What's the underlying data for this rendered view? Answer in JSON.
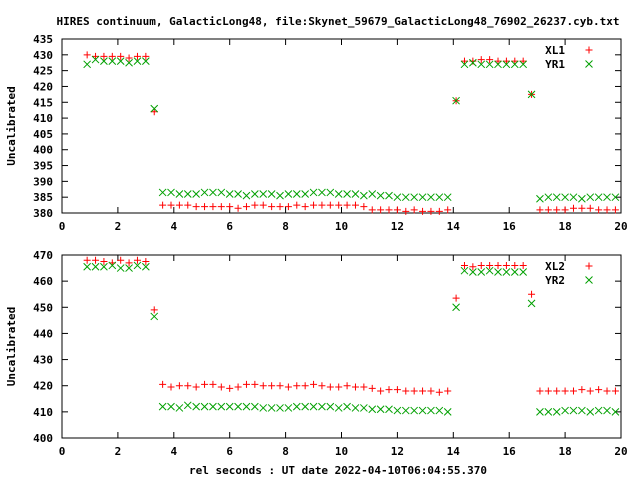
{
  "header": {
    "title": "HIRES continuum, GalacticLong48, file:Skynet_59679_GalacticLong48_76902_26237.cyb.txt"
  },
  "footer": {
    "xlabel": "rel seconds : UT date 2022-04-10T06:04:55.370"
  },
  "colors": {
    "red_series": "#ff0000",
    "green_series": "#00a000"
  },
  "chart_data": [
    {
      "type": "scatter",
      "ylabel": "Uncalibrated",
      "xlim": [
        0,
        20
      ],
      "ylim": [
        380,
        435
      ],
      "xticks": [
        0,
        2,
        4,
        6,
        8,
        10,
        12,
        14,
        16,
        18,
        20
      ],
      "yticks": [
        380,
        385,
        390,
        395,
        400,
        405,
        410,
        415,
        420,
        425,
        430,
        435
      ],
      "legend_position": "top-right",
      "series": [
        {
          "name": "XL1",
          "marker": "plus",
          "color": "#ff0000",
          "points": [
            [
              0.9,
              430
            ],
            [
              1.2,
              429.5
            ],
            [
              1.5,
              429.5
            ],
            [
              1.8,
              429.5
            ],
            [
              2.1,
              429.5
            ],
            [
              2.4,
              429
            ],
            [
              2.7,
              429.5
            ],
            [
              3.0,
              429.5
            ],
            [
              3.3,
              412
            ],
            [
              3.6,
              382.5
            ],
            [
              3.9,
              382.5
            ],
            [
              4.2,
              382.5
            ],
            [
              4.5,
              382.5
            ],
            [
              4.8,
              382
            ],
            [
              5.1,
              382
            ],
            [
              5.4,
              382
            ],
            [
              5.7,
              382
            ],
            [
              6.0,
              382
            ],
            [
              6.3,
              381.5
            ],
            [
              6.6,
              382
            ],
            [
              6.9,
              382.5
            ],
            [
              7.2,
              382.5
            ],
            [
              7.5,
              382
            ],
            [
              7.8,
              382
            ],
            [
              8.1,
              382
            ],
            [
              8.4,
              382.5
            ],
            [
              8.7,
              382
            ],
            [
              9.0,
              382.5
            ],
            [
              9.3,
              382.5
            ],
            [
              9.6,
              382.5
            ],
            [
              9.9,
              382.5
            ],
            [
              10.2,
              382.5
            ],
            [
              10.5,
              382.5
            ],
            [
              10.8,
              382
            ],
            [
              11.1,
              381
            ],
            [
              11.4,
              381
            ],
            [
              11.7,
              381
            ],
            [
              12.0,
              381
            ],
            [
              12.3,
              380.5
            ],
            [
              12.6,
              381
            ],
            [
              12.9,
              380.5
            ],
            [
              13.2,
              380.5
            ],
            [
              13.5,
              380.5
            ],
            [
              13.8,
              381
            ],
            [
              14.1,
              415.5
            ],
            [
              14.4,
              428
            ],
            [
              14.7,
              428
            ],
            [
              15.0,
              428.5
            ],
            [
              15.3,
              428.5
            ],
            [
              15.6,
              428
            ],
            [
              15.9,
              428
            ],
            [
              16.2,
              428
            ],
            [
              16.5,
              428
            ],
            [
              16.8,
              417.5
            ],
            [
              17.1,
              381
            ],
            [
              17.4,
              381
            ],
            [
              17.7,
              381
            ],
            [
              18.0,
              381
            ],
            [
              18.3,
              381.5
            ],
            [
              18.6,
              381.5
            ],
            [
              18.9,
              381.5
            ],
            [
              19.2,
              381
            ],
            [
              19.5,
              381
            ],
            [
              19.8,
              381
            ]
          ]
        },
        {
          "name": "YR1",
          "marker": "cross",
          "color": "#00a000",
          "points": [
            [
              0.9,
              427
            ],
            [
              1.2,
              428.5
            ],
            [
              1.5,
              428
            ],
            [
              1.8,
              428
            ],
            [
              2.1,
              428
            ],
            [
              2.4,
              427.5
            ],
            [
              2.7,
              428
            ],
            [
              3.0,
              428
            ],
            [
              3.3,
              413
            ],
            [
              3.6,
              386.5
            ],
            [
              3.9,
              386.5
            ],
            [
              4.2,
              386
            ],
            [
              4.5,
              386
            ],
            [
              4.8,
              386
            ],
            [
              5.1,
              386.5
            ],
            [
              5.4,
              386.5
            ],
            [
              5.7,
              386.5
            ],
            [
              6.0,
              386
            ],
            [
              6.3,
              386
            ],
            [
              6.6,
              385.5
            ],
            [
              6.9,
              386
            ],
            [
              7.2,
              386
            ],
            [
              7.5,
              386
            ],
            [
              7.8,
              385.5
            ],
            [
              8.1,
              386
            ],
            [
              8.4,
              386
            ],
            [
              8.7,
              386
            ],
            [
              9.0,
              386.5
            ],
            [
              9.3,
              386.5
            ],
            [
              9.6,
              386.5
            ],
            [
              9.9,
              386
            ],
            [
              10.2,
              386
            ],
            [
              10.5,
              386
            ],
            [
              10.8,
              385.5
            ],
            [
              11.1,
              386
            ],
            [
              11.4,
              385.5
            ],
            [
              11.7,
              385.5
            ],
            [
              12.0,
              385
            ],
            [
              12.3,
              385
            ],
            [
              12.6,
              385
            ],
            [
              12.9,
              385
            ],
            [
              13.2,
              385
            ],
            [
              13.5,
              385
            ],
            [
              13.8,
              385
            ],
            [
              14.1,
              415.5
            ],
            [
              14.4,
              427
            ],
            [
              14.7,
              427.5
            ],
            [
              15.0,
              427
            ],
            [
              15.3,
              427
            ],
            [
              15.6,
              427
            ],
            [
              15.9,
              427
            ],
            [
              16.2,
              427
            ],
            [
              16.5,
              427
            ],
            [
              16.8,
              417.5
            ],
            [
              17.1,
              384.5
            ],
            [
              17.4,
              385
            ],
            [
              17.7,
              385
            ],
            [
              18.0,
              385
            ],
            [
              18.3,
              385
            ],
            [
              18.6,
              384.5
            ],
            [
              18.9,
              385
            ],
            [
              19.2,
              385
            ],
            [
              19.5,
              385
            ],
            [
              19.8,
              385
            ]
          ]
        }
      ]
    },
    {
      "type": "scatter",
      "ylabel": "Uncalibrated",
      "xlim": [
        0,
        20
      ],
      "ylim": [
        400,
        470
      ],
      "xticks": [
        0,
        2,
        4,
        6,
        8,
        10,
        12,
        14,
        16,
        18,
        20
      ],
      "yticks": [
        400,
        410,
        420,
        430,
        440,
        450,
        460,
        470
      ],
      "legend_position": "top-right",
      "series": [
        {
          "name": "XL2",
          "marker": "plus",
          "color": "#ff0000",
          "points": [
            [
              0.9,
              468
            ],
            [
              1.2,
              468
            ],
            [
              1.5,
              467.5
            ],
            [
              1.8,
              467
            ],
            [
              2.1,
              468
            ],
            [
              2.4,
              467
            ],
            [
              2.7,
              468
            ],
            [
              3.0,
              467.5
            ],
            [
              3.3,
              449
            ],
            [
              3.6,
              420.5
            ],
            [
              3.9,
              419.5
            ],
            [
              4.2,
              420
            ],
            [
              4.5,
              420
            ],
            [
              4.8,
              419.5
            ],
            [
              5.1,
              420.5
            ],
            [
              5.4,
              420.5
            ],
            [
              5.7,
              419.5
            ],
            [
              6.0,
              419
            ],
            [
              6.3,
              419.5
            ],
            [
              6.6,
              420.5
            ],
            [
              6.9,
              420.5
            ],
            [
              7.2,
              420
            ],
            [
              7.5,
              420
            ],
            [
              7.8,
              420
            ],
            [
              8.1,
              419.5
            ],
            [
              8.4,
              420
            ],
            [
              8.7,
              420
            ],
            [
              9.0,
              420.5
            ],
            [
              9.3,
              420
            ],
            [
              9.6,
              419.5
            ],
            [
              9.9,
              419.5
            ],
            [
              10.2,
              420
            ],
            [
              10.5,
              419.5
            ],
            [
              10.8,
              419.5
            ],
            [
              11.1,
              419
            ],
            [
              11.4,
              418
            ],
            [
              11.7,
              418.5
            ],
            [
              12.0,
              418.5
            ],
            [
              12.3,
              418
            ],
            [
              12.6,
              418
            ],
            [
              12.9,
              418
            ],
            [
              13.2,
              418
            ],
            [
              13.5,
              417.5
            ],
            [
              13.8,
              418
            ],
            [
              14.1,
              453.5
            ],
            [
              14.4,
              466
            ],
            [
              14.7,
              465.5
            ],
            [
              15.0,
              466
            ],
            [
              15.3,
              466
            ],
            [
              15.6,
              466
            ],
            [
              15.9,
              466
            ],
            [
              16.2,
              466
            ],
            [
              16.5,
              466
            ],
            [
              16.8,
              455
            ],
            [
              17.1,
              418
            ],
            [
              17.4,
              418
            ],
            [
              17.7,
              418
            ],
            [
              18.0,
              418
            ],
            [
              18.3,
              418
            ],
            [
              18.6,
              418.5
            ],
            [
              18.9,
              418
            ],
            [
              19.2,
              418.5
            ],
            [
              19.5,
              418
            ],
            [
              19.8,
              418
            ]
          ]
        },
        {
          "name": "YR2",
          "marker": "cross",
          "color": "#00a000",
          "points": [
            [
              0.9,
              465.5
            ],
            [
              1.2,
              465.5
            ],
            [
              1.5,
              465.5
            ],
            [
              1.8,
              466
            ],
            [
              2.1,
              465
            ],
            [
              2.4,
              465
            ],
            [
              2.7,
              466
            ],
            [
              3.0,
              465.5
            ],
            [
              3.3,
              446.5
            ],
            [
              3.6,
              412
            ],
            [
              3.9,
              412
            ],
            [
              4.2,
              411.5
            ],
            [
              4.5,
              412.5
            ],
            [
              4.8,
              412
            ],
            [
              5.1,
              412
            ],
            [
              5.4,
              412
            ],
            [
              5.7,
              412
            ],
            [
              6.0,
              412
            ],
            [
              6.3,
              412
            ],
            [
              6.6,
              412
            ],
            [
              6.9,
              412
            ],
            [
              7.2,
              411.5
            ],
            [
              7.5,
              411.5
            ],
            [
              7.8,
              411.5
            ],
            [
              8.1,
              411.5
            ],
            [
              8.4,
              412
            ],
            [
              8.7,
              412
            ],
            [
              9.0,
              412
            ],
            [
              9.3,
              412
            ],
            [
              9.6,
              412
            ],
            [
              9.9,
              411.5
            ],
            [
              10.2,
              412
            ],
            [
              10.5,
              411.5
            ],
            [
              10.8,
              411.5
            ],
            [
              11.1,
              411
            ],
            [
              11.4,
              411
            ],
            [
              11.7,
              411
            ],
            [
              12.0,
              410.5
            ],
            [
              12.3,
              410.5
            ],
            [
              12.6,
              410.5
            ],
            [
              12.9,
              410.5
            ],
            [
              13.2,
              410.5
            ],
            [
              13.5,
              410.5
            ],
            [
              13.8,
              410
            ],
            [
              14.1,
              450
            ],
            [
              14.4,
              464
            ],
            [
              14.7,
              463.5
            ],
            [
              15.0,
              463.5
            ],
            [
              15.3,
              464
            ],
            [
              15.6,
              463.5
            ],
            [
              15.9,
              463.5
            ],
            [
              16.2,
              463.5
            ],
            [
              16.5,
              463.5
            ],
            [
              16.8,
              451.5
            ],
            [
              17.1,
              410
            ],
            [
              17.4,
              410
            ],
            [
              17.7,
              410
            ],
            [
              18.0,
              410.5
            ],
            [
              18.3,
              410.5
            ],
            [
              18.6,
              410.5
            ],
            [
              18.9,
              410
            ],
            [
              19.2,
              410.5
            ],
            [
              19.5,
              410.5
            ],
            [
              19.8,
              410
            ]
          ]
        }
      ]
    }
  ]
}
